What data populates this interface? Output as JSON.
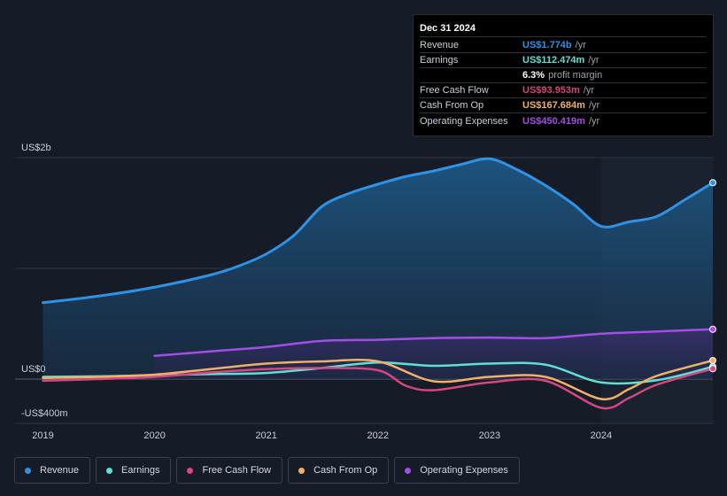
{
  "tooltip": {
    "date": "Dec 31 2024",
    "rows": [
      {
        "label": "Revenue",
        "value": "US$1.774b",
        "unit": "/yr",
        "color": "#2e93e6"
      },
      {
        "label": "Earnings",
        "value": "US$112.474m",
        "unit": "/yr",
        "color": "#5ee0d4"
      },
      {
        "label": "",
        "value": "6.3%",
        "unit": "profit margin",
        "color": "#ffffff"
      },
      {
        "label": "Free Cash Flow",
        "value": "US$93.953m",
        "unit": "/yr",
        "color": "#d6467f"
      },
      {
        "label": "Cash From Op",
        "value": "US$167.684m",
        "unit": "/yr",
        "color": "#f0b06a"
      },
      {
        "label": "Operating Expenses",
        "value": "US$450.419m",
        "unit": "/yr",
        "color": "#a34ee6"
      }
    ]
  },
  "legend": [
    {
      "label": "Revenue",
      "color": "#2e93e6"
    },
    {
      "label": "Earnings",
      "color": "#5ee0d4"
    },
    {
      "label": "Free Cash Flow",
      "color": "#d6467f"
    },
    {
      "label": "Cash From Op",
      "color": "#f0b06a"
    },
    {
      "label": "Operating Expenses",
      "color": "#a34ee6"
    }
  ],
  "chart_data": {
    "type": "line",
    "ylim": [
      -400,
      2000
    ],
    "y_tick_labels": [
      {
        "value": 2000,
        "label": "US$2b"
      },
      {
        "value": 0,
        "label": "US$0"
      },
      {
        "value": -400,
        "label": "-US$400m"
      }
    ],
    "xlim": [
      2018.75,
      2025.0
    ],
    "x_tick_labels": [
      {
        "value": 2019,
        "label": "2019"
      },
      {
        "value": 2020,
        "label": "2020"
      },
      {
        "value": 2021,
        "label": "2021"
      },
      {
        "value": 2022,
        "label": "2022"
      },
      {
        "value": 2023,
        "label": "2023"
      },
      {
        "value": 2024,
        "label": "2024"
      }
    ],
    "highlight_from": 2024.0,
    "series": [
      {
        "name": "Revenue",
        "color": "#2e93e6",
        "fill": true,
        "points": [
          [
            2019.0,
            690
          ],
          [
            2019.5,
            750
          ],
          [
            2020.0,
            830
          ],
          [
            2020.5,
            940
          ],
          [
            2020.75,
            1020
          ],
          [
            2021.0,
            1130
          ],
          [
            2021.25,
            1300
          ],
          [
            2021.5,
            1560
          ],
          [
            2021.75,
            1680
          ],
          [
            2022.0,
            1760
          ],
          [
            2022.25,
            1830
          ],
          [
            2022.5,
            1880
          ],
          [
            2022.75,
            1940
          ],
          [
            2023.0,
            1990
          ],
          [
            2023.25,
            1890
          ],
          [
            2023.5,
            1750
          ],
          [
            2023.75,
            1580
          ],
          [
            2024.0,
            1380
          ],
          [
            2024.25,
            1420
          ],
          [
            2024.5,
            1470
          ],
          [
            2024.75,
            1620
          ],
          [
            2025.0,
            1774
          ]
        ]
      },
      {
        "name": "Operating Expenses",
        "color": "#a34ee6",
        "fill": true,
        "points": [
          [
            2020.0,
            210
          ],
          [
            2020.5,
            250
          ],
          [
            2021.0,
            290
          ],
          [
            2021.5,
            345
          ],
          [
            2022.0,
            355
          ],
          [
            2022.5,
            370
          ],
          [
            2023.0,
            375
          ],
          [
            2023.5,
            370
          ],
          [
            2024.0,
            410
          ],
          [
            2024.5,
            430
          ],
          [
            2025.0,
            450
          ]
        ]
      },
      {
        "name": "Earnings",
        "color": "#5ee0d4",
        "fill": false,
        "points": [
          [
            2019.0,
            20
          ],
          [
            2019.5,
            25
          ],
          [
            2020.0,
            35
          ],
          [
            2020.5,
            45
          ],
          [
            2021.0,
            55
          ],
          [
            2021.5,
            100
          ],
          [
            2022.0,
            150
          ],
          [
            2022.5,
            120
          ],
          [
            2023.0,
            140
          ],
          [
            2023.5,
            130
          ],
          [
            2024.0,
            -30
          ],
          [
            2024.5,
            -10
          ],
          [
            2025.0,
            112
          ]
        ]
      },
      {
        "name": "Free Cash Flow",
        "color": "#d6467f",
        "fill": false,
        "points": [
          [
            2019.0,
            -15
          ],
          [
            2019.5,
            0
          ],
          [
            2020.0,
            20
          ],
          [
            2020.5,
            60
          ],
          [
            2021.0,
            90
          ],
          [
            2021.5,
            100
          ],
          [
            2022.0,
            80
          ],
          [
            2022.25,
            -60
          ],
          [
            2022.5,
            -100
          ],
          [
            2023.0,
            -30
          ],
          [
            2023.5,
            -15
          ],
          [
            2024.0,
            -260
          ],
          [
            2024.25,
            -170
          ],
          [
            2024.5,
            -50
          ],
          [
            2025.0,
            94
          ]
        ]
      },
      {
        "name": "Cash From Op",
        "color": "#f0b06a",
        "fill": false,
        "points": [
          [
            2019.0,
            10
          ],
          [
            2019.5,
            20
          ],
          [
            2020.0,
            40
          ],
          [
            2020.5,
            90
          ],
          [
            2021.0,
            140
          ],
          [
            2021.5,
            160
          ],
          [
            2022.0,
            160
          ],
          [
            2022.5,
            -20
          ],
          [
            2023.0,
            20
          ],
          [
            2023.5,
            20
          ],
          [
            2024.0,
            -180
          ],
          [
            2024.25,
            -90
          ],
          [
            2024.5,
            30
          ],
          [
            2025.0,
            168
          ]
        ]
      }
    ]
  }
}
